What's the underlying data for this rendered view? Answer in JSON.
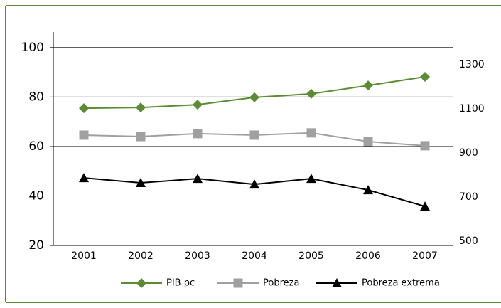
{
  "chart_data": {
    "type": "line",
    "categories": [
      "2001",
      "2002",
      "2003",
      "2004",
      "2005",
      "2006",
      "2007"
    ],
    "series": [
      {
        "name": "PIB pc",
        "color": "#5b8c32",
        "marker": "diamond",
        "axis": "y2",
        "values": [
          1103,
          1106,
          1119,
          1152,
          1168,
          1206,
          1245
        ]
      },
      {
        "name": "Pobreza",
        "color": "#a0a0a0",
        "marker": "square",
        "values": [
          64.6,
          64.0,
          65.2,
          64.6,
          65.5,
          62.0,
          60.3
        ]
      },
      {
        "name": "Pobreza extrema",
        "color": "#000000",
        "marker": "triangle",
        "values": [
          47.3,
          45.3,
          47.0,
          44.7,
          47.0,
          42.4,
          35.8
        ]
      }
    ],
    "ylim": [
      20,
      106.3
    ],
    "yticks": [
      20,
      40,
      60,
      80,
      100
    ],
    "y2lim": [
      480.6,
      1448.4
    ],
    "y2ticks": [
      500,
      700,
      900,
      1100,
      1300
    ],
    "grid": true,
    "legend": "bottom"
  }
}
